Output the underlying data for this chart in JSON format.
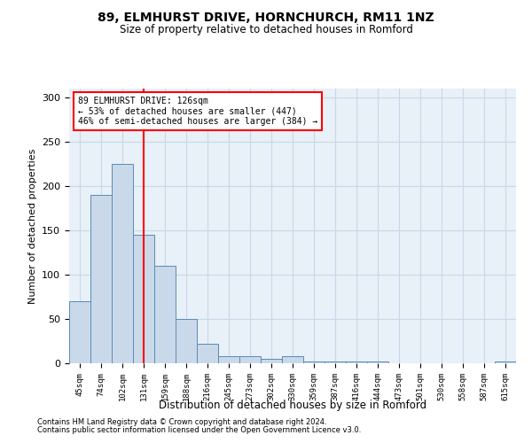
{
  "title": "89, ELMHURST DRIVE, HORNCHURCH, RM11 1NZ",
  "subtitle": "Size of property relative to detached houses in Romford",
  "xlabel": "Distribution of detached houses by size in Romford",
  "ylabel": "Number of detached properties",
  "categories": [
    "45sqm",
    "74sqm",
    "102sqm",
    "131sqm",
    "159sqm",
    "188sqm",
    "216sqm",
    "245sqm",
    "273sqm",
    "302sqm",
    "330sqm",
    "359sqm",
    "387sqm",
    "416sqm",
    "444sqm",
    "473sqm",
    "501sqm",
    "530sqm",
    "558sqm",
    "587sqm",
    "615sqm"
  ],
  "values": [
    70,
    190,
    225,
    145,
    110,
    50,
    22,
    8,
    8,
    5,
    8,
    2,
    2,
    2,
    2,
    0,
    0,
    0,
    0,
    0,
    2
  ],
  "bar_color": "#c9d9ea",
  "bar_edge_color": "#5a8ab5",
  "grid_color": "#c8d8e8",
  "background_color": "#e8f0f8",
  "vline_x": 3,
  "vline_color": "red",
  "annotation_line1": "89 ELMHURST DRIVE: 126sqm",
  "annotation_line2": "← 53% of detached houses are smaller (447)",
  "annotation_line3": "46% of semi-detached houses are larger (384) →",
  "ylim": [
    0,
    310
  ],
  "yticks": [
    0,
    50,
    100,
    150,
    200,
    250,
    300
  ],
  "footnote1": "Contains HM Land Registry data © Crown copyright and database right 2024.",
  "footnote2": "Contains public sector information licensed under the Open Government Licence v3.0."
}
